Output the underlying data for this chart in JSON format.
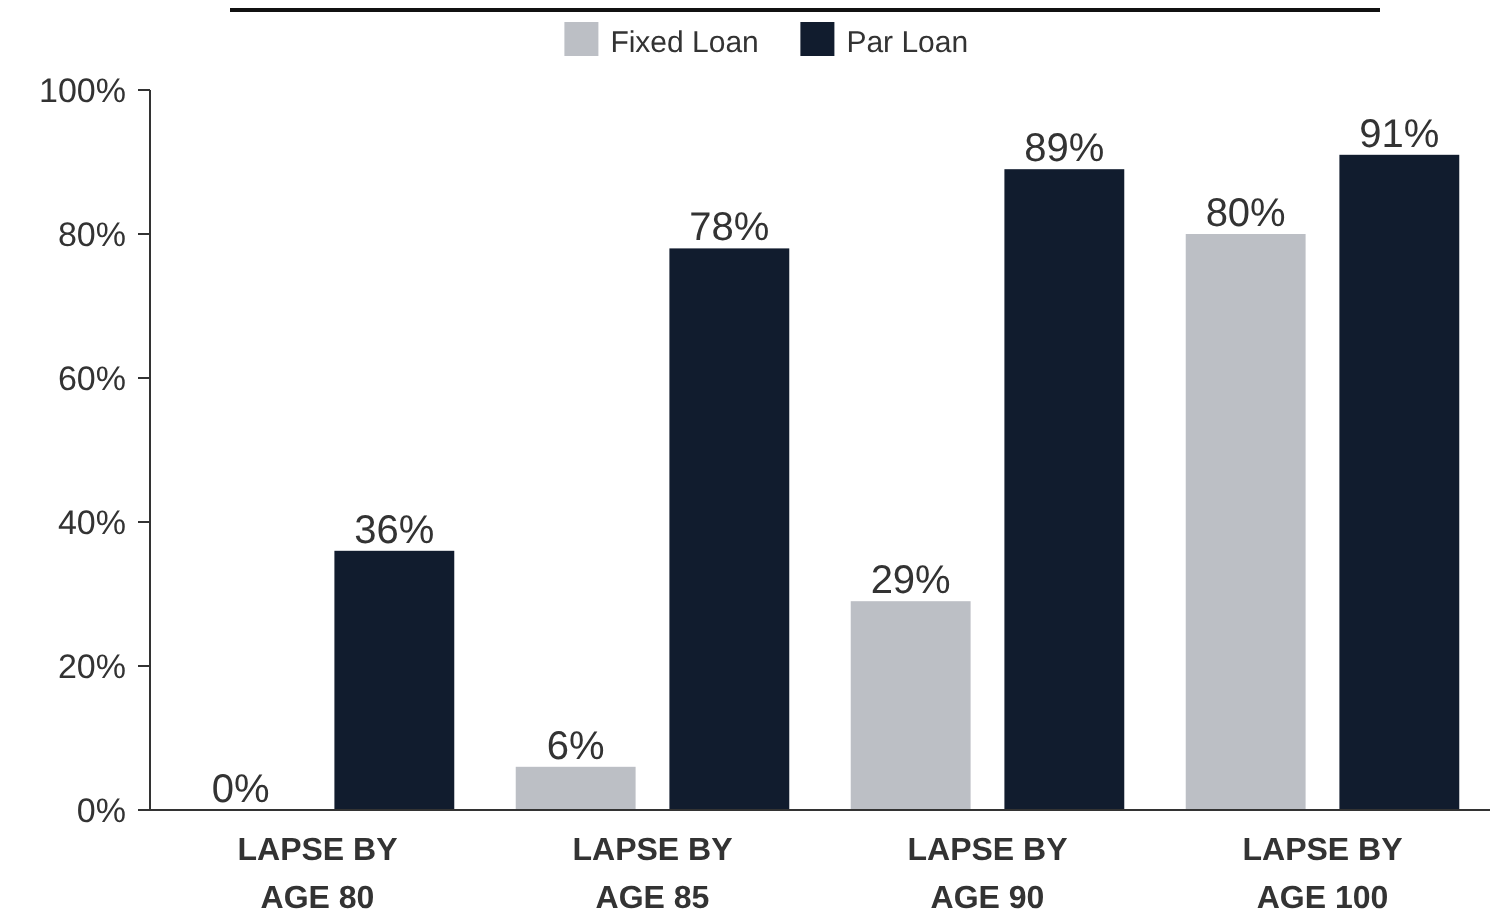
{
  "chart_data": {
    "type": "bar",
    "categories": [
      "LAPSE BY AGE 80",
      "LAPSE BY AGE 85",
      "LAPSE BY AGE 90",
      "LAPSE BY AGE 100"
    ],
    "series": [
      {
        "name": "Fixed Loan",
        "color": "#bcbfc5",
        "values": [
          0,
          6,
          29,
          80
        ],
        "value_labels": [
          "0%",
          "6%",
          "29%",
          "80%"
        ]
      },
      {
        "name": "Par Loan",
        "color": "#111c2e",
        "values": [
          36,
          78,
          89,
          91
        ],
        "value_labels": [
          "36%",
          "78%",
          "89%",
          "91%"
        ]
      }
    ],
    "ylim": [
      0,
      100
    ],
    "yticks": [
      {
        "value": 0,
        "label": "0%"
      },
      {
        "value": 20,
        "label": "20%"
      },
      {
        "value": 40,
        "label": "40%"
      },
      {
        "value": 60,
        "label": "60%"
      },
      {
        "value": 80,
        "label": "80%"
      },
      {
        "value": 100,
        "label": "100%"
      }
    ],
    "legend": "top",
    "grid": false
  }
}
